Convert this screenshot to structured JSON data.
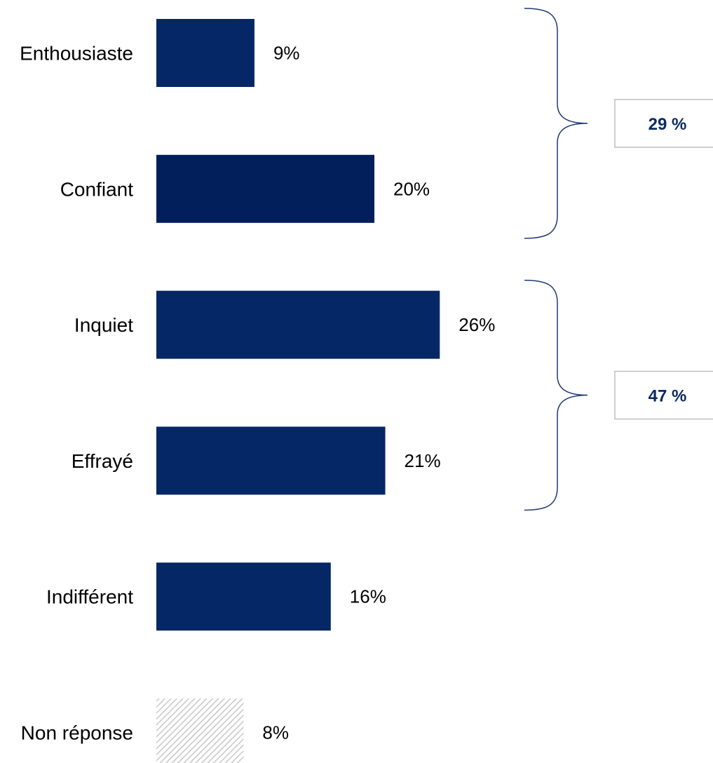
{
  "chart_data": {
    "type": "bar",
    "orientation": "horizontal",
    "categories": [
      "Enthousiaste",
      "Confiant",
      "Inquiet",
      "Effrayé",
      "Indifférent",
      "Non réponse"
    ],
    "values": [
      9,
      20,
      26,
      21,
      16,
      8
    ],
    "value_labels": [
      "9%",
      "20%",
      "26%",
      "21%",
      "16%",
      "8%"
    ],
    "unit": "%",
    "xlim": [
      0,
      100
    ],
    "grid": false,
    "legend": "none",
    "bar_styles": [
      "solid",
      "solid",
      "solid",
      "solid",
      "solid",
      "hatched"
    ],
    "groups": [
      {
        "categories": [
          "Enthousiaste",
          "Confiant"
        ],
        "label": "29 %"
      },
      {
        "categories": [
          "Inquiet",
          "Effrayé"
        ],
        "label": "47 %"
      }
    ],
    "colors": {
      "bar": "#062765",
      "bar_alt": "#021f5c",
      "hatch": "#c8c8c8",
      "bracket": "#1f3a73",
      "group_text": "#0b2a63",
      "group_box_border": "#bfbfbf"
    }
  }
}
